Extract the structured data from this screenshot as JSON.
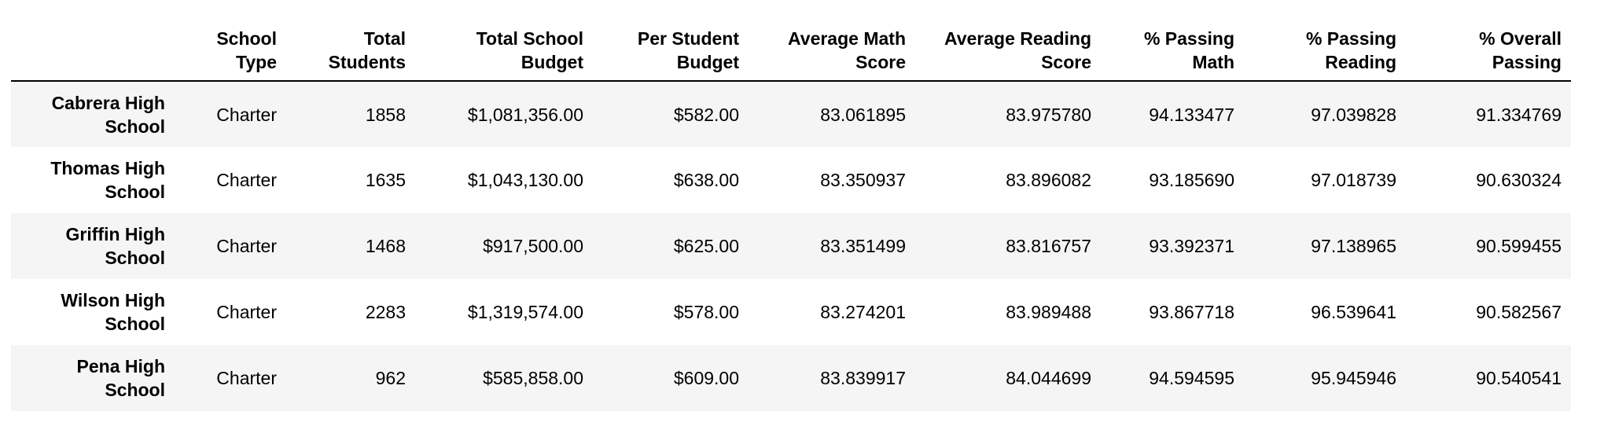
{
  "table": {
    "index_header": "",
    "columns": [
      [
        "School",
        "Type"
      ],
      [
        "Total",
        "Students"
      ],
      [
        "Total School",
        "Budget"
      ],
      [
        "Per Student",
        "Budget"
      ],
      [
        "Average Math",
        "Score"
      ],
      [
        "Average Reading",
        "Score"
      ],
      [
        "% Passing",
        "Math"
      ],
      [
        "% Passing",
        "Reading"
      ],
      [
        "% Overall",
        "Passing"
      ]
    ],
    "rows": [
      {
        "index": [
          "Cabrera High",
          "School"
        ],
        "cells": [
          "Charter",
          "1858",
          "$1,081,356.00",
          "$582.00",
          "83.061895",
          "83.975780",
          "94.133477",
          "97.039828",
          "91.334769"
        ]
      },
      {
        "index": [
          "Thomas High",
          "School"
        ],
        "cells": [
          "Charter",
          "1635",
          "$1,043,130.00",
          "$638.00",
          "83.350937",
          "83.896082",
          "93.185690",
          "97.018739",
          "90.630324"
        ]
      },
      {
        "index": [
          "Griffin High",
          "School"
        ],
        "cells": [
          "Charter",
          "1468",
          "$917,500.00",
          "$625.00",
          "83.351499",
          "83.816757",
          "93.392371",
          "97.138965",
          "90.599455"
        ]
      },
      {
        "index": [
          "Wilson High",
          "School"
        ],
        "cells": [
          "Charter",
          "2283",
          "$1,319,574.00",
          "$578.00",
          "83.274201",
          "83.989488",
          "93.867718",
          "96.539641",
          "90.582567"
        ]
      },
      {
        "index": [
          "Pena High",
          "School"
        ],
        "cells": [
          "Charter",
          "962",
          "$585,858.00",
          "$609.00",
          "83.839917",
          "84.044699",
          "94.594595",
          "95.945946",
          "90.540541"
        ]
      }
    ]
  }
}
